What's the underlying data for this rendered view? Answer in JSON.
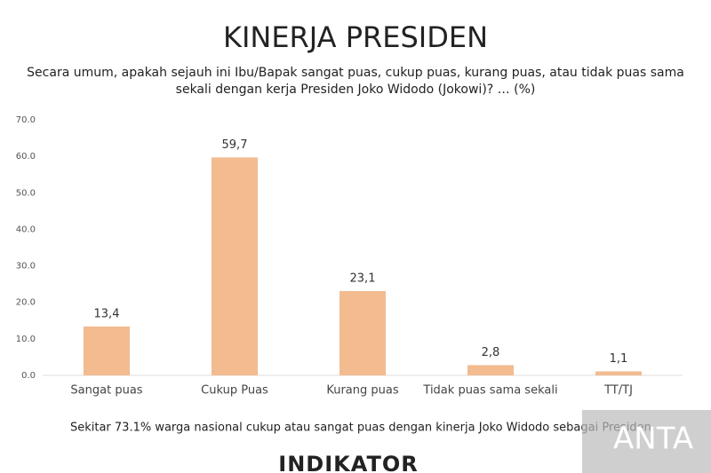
{
  "chart_data": {
    "type": "bar",
    "title": "KINERJA PRESIDEN",
    "subtitle": [
      "Secara umum, apakah sejauh ini Ibu/Bapak sangat puas, cukup puas, kurang puas, atau tidak puas sama",
      "sekali dengan kerja Presiden Joko Widodo (Jokowi)? … (%)"
    ],
    "categories": [
      "Sangat puas",
      "Cukup Puas",
      "Kurang puas",
      "Tidak puas sama sekali",
      "TT/TJ"
    ],
    "values": [
      13.4,
      59.7,
      23.1,
      2.8,
      1.1
    ],
    "value_labels": [
      "13,4",
      "59,7",
      "23,1",
      "2,8",
      "1,1"
    ],
    "color": "#f2bb90",
    "ylim": [
      0,
      70
    ],
    "yticks": [
      {
        "value": 0,
        "label": "0.0"
      },
      {
        "value": 10,
        "label": "10.0"
      },
      {
        "value": 20,
        "label": "20.0"
      },
      {
        "value": 30,
        "label": "30.0"
      },
      {
        "value": 40,
        "label": "40.0"
      },
      {
        "value": 50,
        "label": "50.0"
      },
      {
        "value": 60,
        "label": "60.0"
      },
      {
        "value": 70,
        "label": "70.0"
      }
    ],
    "grid": false,
    "footnote": "Sekitar 73.1% warga nasional cukup atau sangat puas dengan kinerja Joko Widodo sebagai Presiden.",
    "logo": "INDIKATOR",
    "watermark": "ANTA"
  }
}
